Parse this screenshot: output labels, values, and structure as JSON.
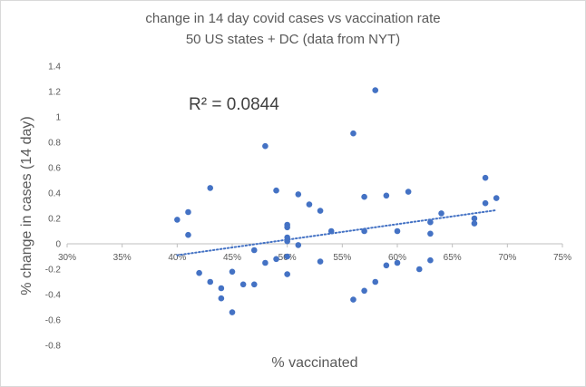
{
  "chart_data": {
    "type": "scatter",
    "title": [
      "change in 14 day covid cases vs vaccination rate",
      "50 US states + DC (data from NYT)"
    ],
    "xlabel": "% vaccinated",
    "ylabel": "% change in cases (14 day)",
    "xlim": [
      0.3,
      0.75
    ],
    "ylim": [
      -0.8,
      1.4
    ],
    "xticks": [
      {
        "value": 0.3,
        "label": "30%"
      },
      {
        "value": 0.35,
        "label": "35%"
      },
      {
        "value": 0.4,
        "label": "40%"
      },
      {
        "value": 0.45,
        "label": "45%"
      },
      {
        "value": 0.5,
        "label": "50%"
      },
      {
        "value": 0.55,
        "label": "55%"
      },
      {
        "value": 0.6,
        "label": "60%"
      },
      {
        "value": 0.65,
        "label": "65%"
      },
      {
        "value": 0.7,
        "label": "70%"
      },
      {
        "value": 0.75,
        "label": "75%"
      }
    ],
    "yticks": [
      {
        "value": 1.4,
        "label": "1.4"
      },
      {
        "value": 1.2,
        "label": "1.2"
      },
      {
        "value": 1.0,
        "label": "1"
      },
      {
        "value": 0.8,
        "label": "0.8"
      },
      {
        "value": 0.6,
        "label": "0.6"
      },
      {
        "value": 0.4,
        "label": "0.4"
      },
      {
        "value": 0.2,
        "label": "0.2"
      },
      {
        "value": 0.0,
        "label": "0"
      },
      {
        "value": -0.2,
        "label": "-0.2"
      },
      {
        "value": -0.4,
        "label": "-0.4"
      },
      {
        "value": -0.6,
        "label": "-0.6"
      },
      {
        "value": -0.8,
        "label": "-0.8"
      }
    ],
    "grid": false,
    "marker_color": "#4472c4",
    "trendline": {
      "type": "linear",
      "style": "dotted",
      "color": "#4472c4",
      "x_start": 0.4,
      "y_start": -0.09,
      "x_end": 0.69,
      "y_end": 0.265
    },
    "annotation": "R² = 0.0844",
    "points": [
      {
        "x": 0.4,
        "y": 0.19
      },
      {
        "x": 0.41,
        "y": 0.25
      },
      {
        "x": 0.41,
        "y": 0.07
      },
      {
        "x": 0.42,
        "y": -0.23
      },
      {
        "x": 0.43,
        "y": 0.44
      },
      {
        "x": 0.43,
        "y": -0.3
      },
      {
        "x": 0.44,
        "y": -0.35
      },
      {
        "x": 0.44,
        "y": -0.43
      },
      {
        "x": 0.45,
        "y": -0.22
      },
      {
        "x": 0.45,
        "y": -0.54
      },
      {
        "x": 0.46,
        "y": -0.32
      },
      {
        "x": 0.47,
        "y": -0.05
      },
      {
        "x": 0.47,
        "y": -0.32
      },
      {
        "x": 0.48,
        "y": 0.77
      },
      {
        "x": 0.48,
        "y": -0.15
      },
      {
        "x": 0.49,
        "y": 0.42
      },
      {
        "x": 0.49,
        "y": -0.12
      },
      {
        "x": 0.5,
        "y": 0.15
      },
      {
        "x": 0.5,
        "y": 0.13
      },
      {
        "x": 0.5,
        "y": 0.05
      },
      {
        "x": 0.5,
        "y": 0.02
      },
      {
        "x": 0.5,
        "y": -0.1
      },
      {
        "x": 0.5,
        "y": -0.24
      },
      {
        "x": 0.51,
        "y": 0.39
      },
      {
        "x": 0.51,
        "y": -0.01
      },
      {
        "x": 0.52,
        "y": 0.31
      },
      {
        "x": 0.53,
        "y": 0.26
      },
      {
        "x": 0.53,
        "y": -0.14
      },
      {
        "x": 0.54,
        "y": 0.1
      },
      {
        "x": 0.56,
        "y": 0.87
      },
      {
        "x": 0.56,
        "y": -0.44
      },
      {
        "x": 0.57,
        "y": 0.37
      },
      {
        "x": 0.57,
        "y": 0.1
      },
      {
        "x": 0.57,
        "y": -0.37
      },
      {
        "x": 0.58,
        "y": 1.21
      },
      {
        "x": 0.58,
        "y": -0.3
      },
      {
        "x": 0.59,
        "y": 0.38
      },
      {
        "x": 0.59,
        "y": -0.17
      },
      {
        "x": 0.6,
        "y": 0.1
      },
      {
        "x": 0.6,
        "y": -0.15
      },
      {
        "x": 0.61,
        "y": 0.41
      },
      {
        "x": 0.62,
        "y": -0.2
      },
      {
        "x": 0.63,
        "y": 0.17
      },
      {
        "x": 0.63,
        "y": 0.08
      },
      {
        "x": 0.63,
        "y": -0.13
      },
      {
        "x": 0.64,
        "y": 0.24
      },
      {
        "x": 0.67,
        "y": 0.2
      },
      {
        "x": 0.67,
        "y": 0.16
      },
      {
        "x": 0.68,
        "y": 0.52
      },
      {
        "x": 0.68,
        "y": 0.32
      },
      {
        "x": 0.69,
        "y": 0.36
      }
    ]
  }
}
